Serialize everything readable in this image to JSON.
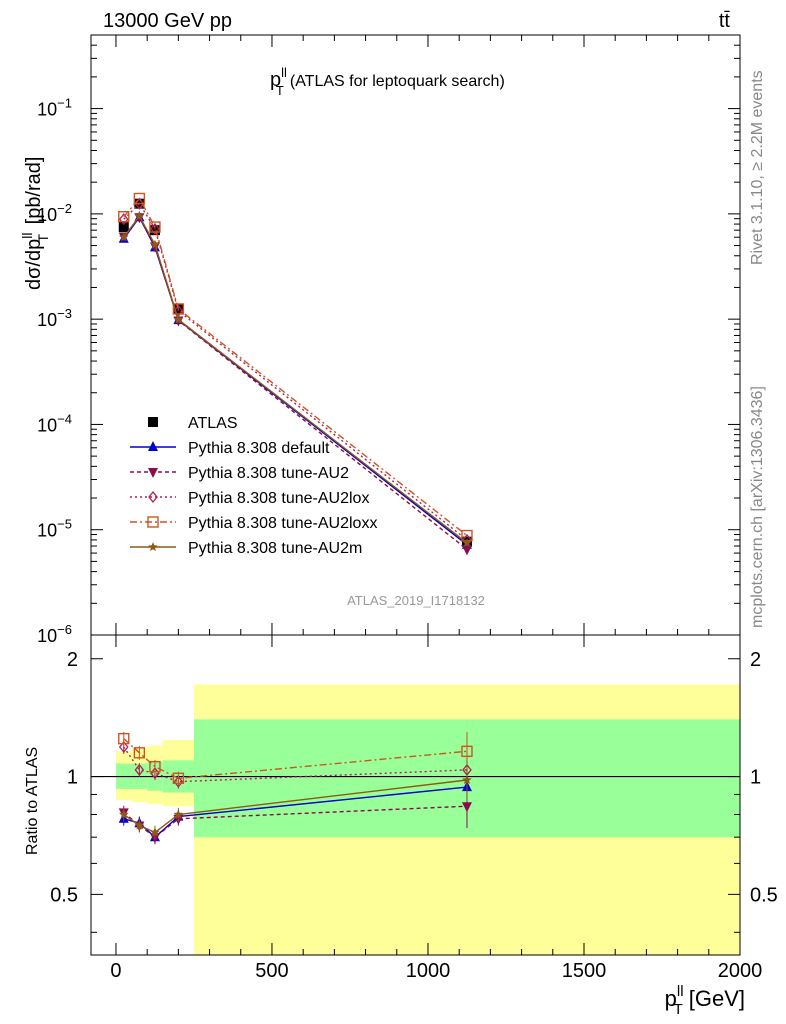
{
  "header": {
    "left": "13000 GeV pp",
    "right": "tt̄"
  },
  "side_labels": {
    "rivet": "Rivet 3.1.10, ≥ 2.2M events",
    "mcplots": "mcplots.cern.ch [arXiv:1306.3436]"
  },
  "chart_data": [
    {
      "type": "line",
      "panel": "main",
      "title_main": "p",
      "title_sup": "ll",
      "title_sub": "T",
      "title_rest": "(ATLAS for leptoquark search)",
      "ylabel": "dσ/dp_T^ll [pb/rad]",
      "yscale": "log",
      "ylim": [
        1e-06,
        0.5
      ],
      "xlim": [
        -80,
        2000
      ],
      "analysis_label": "ATLAS_2019_I1718132",
      "y_ticks": [
        {
          "base": "10",
          "exp": "−1",
          "value": 0.1
        },
        {
          "base": "10",
          "exp": "−2",
          "value": 0.01
        },
        {
          "base": "10",
          "exp": "−3",
          "value": 0.001
        },
        {
          "base": "10",
          "exp": "−4",
          "value": 0.0001
        },
        {
          "base": "10",
          "exp": "−5",
          "value": 1e-05
        },
        {
          "base": "10",
          "exp": "−6",
          "value": 1e-06
        }
      ],
      "x": [
        25,
        75,
        125,
        200,
        1125
      ],
      "series": [
        {
          "name": "ATLAS",
          "marker": "square",
          "color": "#000000",
          "dash": "none",
          "values": [
            0.0075,
            0.0125,
            0.007,
            0.00125,
            7.7e-06
          ]
        },
        {
          "name": "Pythia 8.308 default",
          "marker": "triangle-up",
          "color": "#0000cc",
          "dash": "none",
          "values": [
            0.0058,
            0.0093,
            0.0048,
            0.00098,
            7.2e-06
          ]
        },
        {
          "name": "Pythia 8.308 tune-AU2",
          "marker": "triangle-down",
          "color": "#8b0a50",
          "dash": "4,3",
          "values": [
            0.0061,
            0.0093,
            0.0049,
            0.00097,
            6.5e-06
          ]
        },
        {
          "name": "Pythia 8.308 tune-AU2lox",
          "marker": "diamond",
          "color": "#b02050",
          "dash": "2,3",
          "values": [
            0.0089,
            0.0125,
            0.0072,
            0.0012,
            8e-06
          ]
        },
        {
          "name": "Pythia 8.308 tune-AU2loxx",
          "marker": "open-square",
          "color": "#cc5522",
          "dash": "7,3,2,3",
          "values": [
            0.0094,
            0.014,
            0.0075,
            0.00125,
            8.8e-06
          ]
        },
        {
          "name": "Pythia 8.308 tune-AU2m",
          "marker": "star",
          "color": "#8b5a14",
          "dash": "none",
          "values": [
            0.006,
            0.0095,
            0.0051,
            0.00099,
            7.5e-06
          ]
        }
      ]
    },
    {
      "type": "line",
      "panel": "ratio",
      "ylabel": "Ratio to ATLAS",
      "ylim": [
        0.35,
        2.3
      ],
      "xlim": [
        -80,
        2000
      ],
      "xlabel_main": "p",
      "xlabel_sup": "ll",
      "xlabel_sub": "T",
      "xlabel_unit": "[GeV]",
      "x_ticks": [
        "0",
        "500",
        "1000",
        "1500",
        "2000"
      ],
      "x_tick_values": [
        0,
        500,
        1000,
        1500,
        2000
      ],
      "y_ticks": [
        "0.5",
        "1",
        "2"
      ],
      "y_tick_values": [
        0.5,
        1,
        2
      ],
      "bands": [
        {
          "x0": 0,
          "x1": 50,
          "yellow": [
            0.87,
            1.16
          ],
          "green": [
            0.93,
            1.08
          ]
        },
        {
          "x0": 50,
          "x1": 100,
          "yellow": [
            0.86,
            1.18
          ],
          "green": [
            0.93,
            1.08
          ]
        },
        {
          "x0": 100,
          "x1": 150,
          "yellow": [
            0.85,
            1.2
          ],
          "green": [
            0.92,
            1.09
          ]
        },
        {
          "x0": 150,
          "x1": 250,
          "yellow": [
            0.84,
            1.24
          ],
          "green": [
            0.91,
            1.1
          ]
        },
        {
          "x0": 250,
          "x1": 2000,
          "yellow": [
            0.35,
            1.72
          ],
          "green": [
            0.7,
            1.4
          ]
        }
      ],
      "x": [
        25,
        75,
        125,
        200,
        1125
      ],
      "series": [
        {
          "name": "Pythia 8.308 default",
          "marker": "triangle-up",
          "color": "#0000cc",
          "dash": "none",
          "values": [
            0.78,
            0.76,
            0.7,
            0.79,
            0.94
          ]
        },
        {
          "name": "Pythia 8.308 tune-AU2",
          "marker": "triangle-down",
          "color": "#8b0a50",
          "dash": "4,3",
          "values": [
            0.81,
            0.75,
            0.7,
            0.78,
            0.84
          ]
        },
        {
          "name": "Pythia 8.308 tune-AU2lox",
          "marker": "diamond",
          "color": "#b02050",
          "dash": "2,3",
          "values": [
            1.19,
            1.04,
            1.02,
            0.97,
            1.04
          ]
        },
        {
          "name": "Pythia 8.308 tune-AU2loxx",
          "marker": "open-square",
          "color": "#cc5522",
          "dash": "7,3,2,3",
          "values": [
            1.25,
            1.15,
            1.06,
            0.99,
            1.16
          ]
        },
        {
          "name": "Pythia 8.308 tune-AU2m",
          "marker": "star",
          "color": "#8b5a14",
          "dash": "none",
          "values": [
            0.8,
            0.75,
            0.72,
            0.8,
            0.98
          ]
        }
      ]
    }
  ]
}
